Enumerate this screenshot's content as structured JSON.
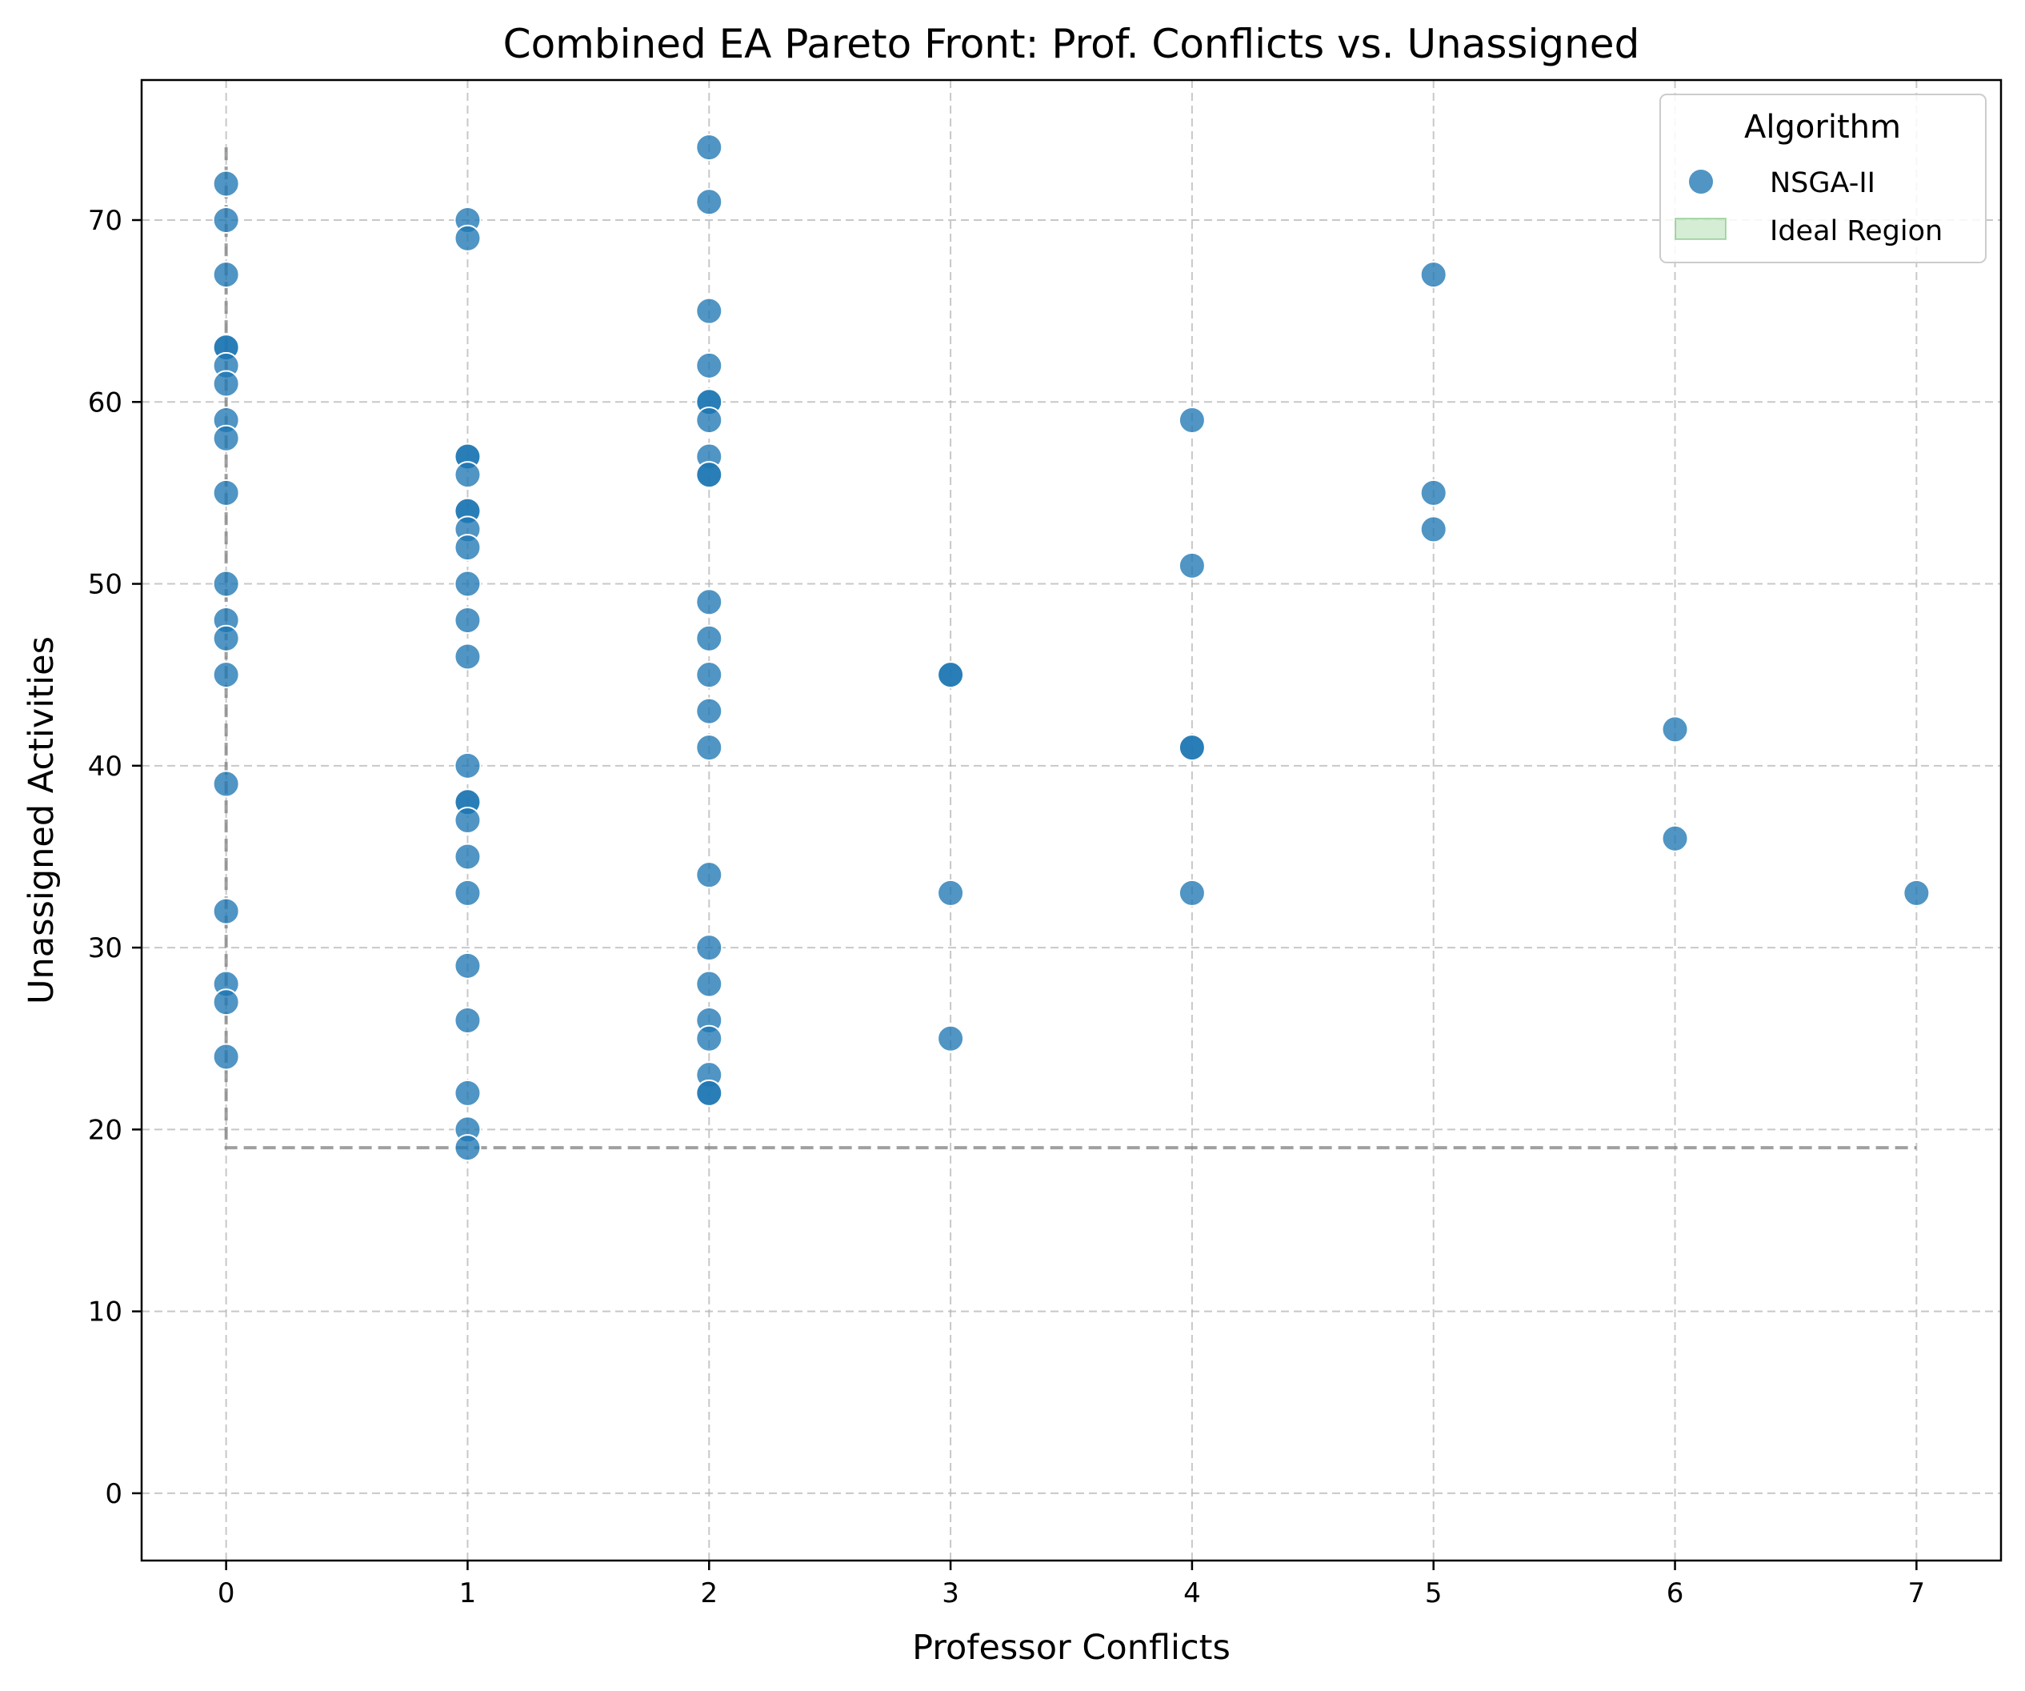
{
  "chart_data": {
    "type": "scatter",
    "title": "Combined EA Pareto Front: Prof. Conflicts vs. Unassigned",
    "xlabel": "Professor Conflicts",
    "ylabel": "Unassigned Activities",
    "xlim": [
      -0.35,
      7.35
    ],
    "ylim": [
      -3.7,
      77.7
    ],
    "x_ticks": [
      0,
      1,
      2,
      3,
      4,
      5,
      6,
      7
    ],
    "y_ticks": [
      0,
      10,
      20,
      30,
      40,
      50,
      60,
      70
    ],
    "grid": true,
    "legend": {
      "title": "Algorithm",
      "placement": "top-right",
      "entries": [
        "NSGA-II",
        "Ideal Region"
      ]
    },
    "colors": {
      "points": "#1f77b4",
      "ideal_region": "#2ca02c",
      "grid": "#b0b0b0",
      "front_line": "#808080"
    },
    "series": [
      {
        "name": "NSGA-II",
        "points": [
          [
            0,
            72
          ],
          [
            0,
            70
          ],
          [
            0,
            67
          ],
          [
            0,
            63
          ],
          [
            0,
            63
          ],
          [
            0,
            62
          ],
          [
            0,
            61
          ],
          [
            0,
            59
          ],
          [
            0,
            58
          ],
          [
            0,
            55
          ],
          [
            0,
            50
          ],
          [
            0,
            48
          ],
          [
            0,
            47
          ],
          [
            0,
            45
          ],
          [
            0,
            39
          ],
          [
            0,
            32
          ],
          [
            0,
            28
          ],
          [
            0,
            27
          ],
          [
            0,
            24
          ],
          [
            1,
            70
          ],
          [
            1,
            69
          ],
          [
            1,
            57
          ],
          [
            1,
            57
          ],
          [
            1,
            56
          ],
          [
            1,
            54
          ],
          [
            1,
            54
          ],
          [
            1,
            53
          ],
          [
            1,
            52
          ],
          [
            1,
            50
          ],
          [
            1,
            48
          ],
          [
            1,
            46
          ],
          [
            1,
            40
          ],
          [
            1,
            38
          ],
          [
            1,
            38
          ],
          [
            1,
            37
          ],
          [
            1,
            35
          ],
          [
            1,
            33
          ],
          [
            1,
            29
          ],
          [
            1,
            26
          ],
          [
            1,
            22
          ],
          [
            1,
            20
          ],
          [
            1,
            19
          ],
          [
            2,
            74
          ],
          [
            2,
            71
          ],
          [
            2,
            65
          ],
          [
            2,
            62
          ],
          [
            2,
            60
          ],
          [
            2,
            60
          ],
          [
            2,
            59
          ],
          [
            2,
            57
          ],
          [
            2,
            56
          ],
          [
            2,
            56
          ],
          [
            2,
            49
          ],
          [
            2,
            47
          ],
          [
            2,
            45
          ],
          [
            2,
            43
          ],
          [
            2,
            41
          ],
          [
            2,
            34
          ],
          [
            2,
            30
          ],
          [
            2,
            28
          ],
          [
            2,
            26
          ],
          [
            2,
            25
          ],
          [
            2,
            23
          ],
          [
            2,
            22
          ],
          [
            2,
            22
          ],
          [
            3,
            45
          ],
          [
            3,
            45
          ],
          [
            3,
            33
          ],
          [
            3,
            25
          ],
          [
            4,
            59
          ],
          [
            4,
            51
          ],
          [
            4,
            41
          ],
          [
            4,
            41
          ],
          [
            4,
            33
          ],
          [
            5,
            67
          ],
          [
            5,
            55
          ],
          [
            5,
            53
          ],
          [
            6,
            42
          ],
          [
            6,
            36
          ],
          [
            7,
            33
          ]
        ]
      }
    ],
    "pareto_front_outline": [
      [
        0,
        74
      ],
      [
        0,
        19
      ],
      [
        7,
        19
      ]
    ]
  }
}
